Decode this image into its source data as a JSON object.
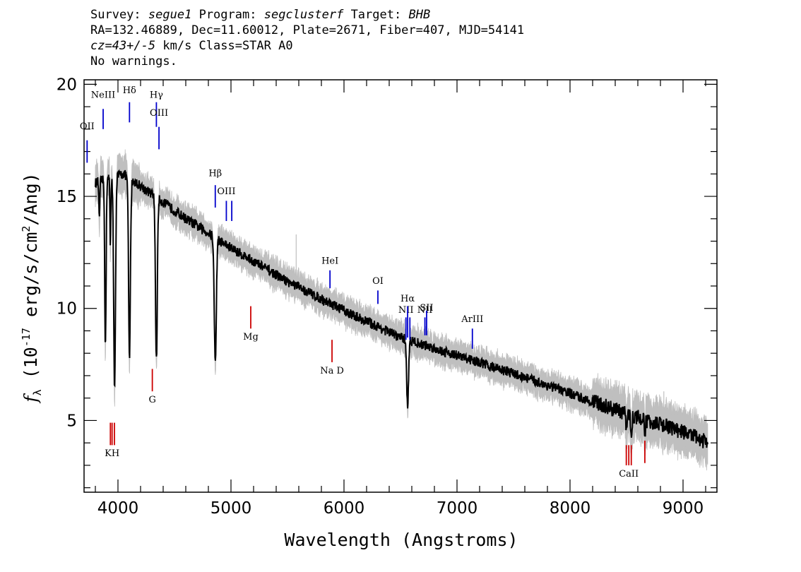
{
  "header": {
    "line1": {
      "survey_label": "Survey:",
      "survey": "segue1",
      "program_label": "Program:",
      "program": "segclusterf",
      "target_label": "Target:",
      "target": "BHB"
    },
    "line2": "RA=132.46889, Dec=11.60012, Plate=2671, Fiber=407, MJD=54141",
    "line3": {
      "redshift": "cz=43+/-5",
      "rest": " km/s Class=STAR A0"
    },
    "line4": "No warnings."
  },
  "chart_data": {
    "type": "line",
    "title": "",
    "xlabel": "Wavelength (Angstroms)",
    "ylabel_parts": {
      "symbol": "f",
      "sub": "λ",
      "pre": " (10",
      "sup": "-17",
      "mid": " erg/s/cm",
      "sup2": "2",
      "post": "/Ang)"
    },
    "xlim": [
      3700,
      9300
    ],
    "ylim": [
      1.8,
      20.2
    ],
    "x_ticks": [
      4000,
      5000,
      6000,
      7000,
      8000,
      9000
    ],
    "y_ticks": [
      5,
      10,
      15,
      20
    ],
    "x_tick_labels": [
      "4000",
      "5000",
      "6000",
      "7000",
      "8000",
      "9000"
    ],
    "y_tick_labels": [
      "5",
      "10",
      "15",
      "20"
    ],
    "colors": {
      "flux": "#000000",
      "error_band": "#bfbfbf",
      "emission": "#0000cc",
      "absorption": "#cc0000",
      "sky": "#000000"
    },
    "continuum": [
      [
        3800,
        15.6
      ],
      [
        4050,
        16.0
      ],
      [
        4300,
        15.1
      ],
      [
        4600,
        14.0
      ],
      [
        5000,
        12.7
      ],
      [
        5500,
        11.2
      ],
      [
        6000,
        9.9
      ],
      [
        6500,
        8.7
      ],
      [
        7000,
        7.9
      ],
      [
        7500,
        7.1
      ],
      [
        8000,
        6.2
      ],
      [
        8500,
        5.3
      ],
      [
        9000,
        4.5
      ],
      [
        9220,
        4.0
      ]
    ],
    "absorption_features": [
      {
        "center": 3835,
        "depth": 1.8,
        "width": 4
      },
      {
        "center": 3889,
        "depth": 7.5,
        "width": 6
      },
      {
        "center": 3933,
        "depth": 3.0,
        "width": 4
      },
      {
        "center": 3970,
        "depth": 9.5,
        "width": 8
      },
      {
        "center": 4102,
        "depth": 8.0,
        "width": 8
      },
      {
        "center": 4340,
        "depth": 7.3,
        "width": 8
      },
      {
        "center": 4861,
        "depth": 5.6,
        "width": 9
      },
      {
        "center": 6563,
        "depth": 3.0,
        "width": 8
      },
      {
        "center": 8498,
        "depth": 0.5,
        "width": 6
      },
      {
        "center": 8542,
        "depth": 0.8,
        "width": 6
      },
      {
        "center": 8662,
        "depth": 0.6,
        "width": 6
      }
    ],
    "sky_spikes": [
      {
        "x": 5577,
        "y": 13.3
      },
      {
        "x": 5890,
        "y": 10.2
      },
      {
        "x": 8400,
        "y": 6.8
      },
      {
        "x": 8830,
        "y": 6.3
      }
    ],
    "emission_lines": [
      {
        "label": "OII",
        "x": 3727,
        "y_top": 17.5,
        "y_bottom": 16.5,
        "label_y": 18.0
      },
      {
        "label": "NeIII",
        "x": 3869,
        "y_top": 18.9,
        "y_bottom": 18.0,
        "label_y": 19.4
      },
      {
        "label": "Hδ",
        "x": 4102,
        "y_top": 19.2,
        "y_bottom": 18.3,
        "label_y": 19.6
      },
      {
        "label": "Hγ",
        "x": 4340,
        "y_top": 19.2,
        "y_bottom": 18.1,
        "label_y": 19.4
      },
      {
        "label": "OIII",
        "x": 4363,
        "y_top": 18.1,
        "y_bottom": 17.1,
        "label_y": 18.6
      },
      {
        "label": "Hβ",
        "x": 4861,
        "y_top": 15.5,
        "y_bottom": 14.5,
        "label_y": 15.9
      },
      {
        "label": "OIII",
        "x": 4959,
        "y_top": 14.8,
        "y_bottom": 13.9,
        "label_y": 15.1
      },
      {
        "label": "",
        "x": 5007,
        "y_top": 14.8,
        "y_bottom": 13.9,
        "label_y": 15.1
      },
      {
        "label": "HeI",
        "x": 5876,
        "y_top": 11.7,
        "y_bottom": 10.9,
        "label_y": 12.0
      },
      {
        "label": "OI",
        "x": 6300,
        "y_top": 10.8,
        "y_bottom": 10.2,
        "label_y": 11.1
      },
      {
        "label": "NII",
        "x": 6548,
        "y_top": 9.6,
        "y_bottom": 8.6,
        "label_y": 9.8
      },
      {
        "label": "Hα",
        "x": 6563,
        "y_top": 10.1,
        "y_bottom": 8.7,
        "label_y": 10.3
      },
      {
        "label": "",
        "x": 6583,
        "y_top": 9.6,
        "y_bottom": 8.6,
        "label_y": 9.8
      },
      {
        "label": "NII",
        "x": 6716,
        "y_top": 9.6,
        "y_bottom": 8.8,
        "label_y": 9.8
      },
      {
        "label": "SII",
        "x": 6731,
        "y_top": 9.9,
        "y_bottom": 8.8,
        "label_y": 9.9
      },
      {
        "label": "ArIII",
        "x": 7136,
        "y_top": 9.1,
        "y_bottom": 8.2,
        "label_y": 9.4
      }
    ],
    "absorption_lines": [
      {
        "label": "KH",
        "x": 3948,
        "y_top": 4.9,
        "y_bottom": 3.9,
        "label_y": 3.4
      },
      {
        "label": "",
        "x": 3933,
        "y_top": 4.9,
        "y_bottom": 3.9,
        "label_y": 3.4
      },
      {
        "label": "",
        "x": 3969,
        "y_top": 4.9,
        "y_bottom": 3.9,
        "label_y": 3.4
      },
      {
        "label": "G",
        "x": 4304,
        "y_top": 7.3,
        "y_bottom": 6.3,
        "label_y": 5.8
      },
      {
        "label": "Mg",
        "x": 5175,
        "y_top": 10.1,
        "y_bottom": 9.1,
        "label_y": 8.6
      },
      {
        "label": "Na D",
        "x": 5894,
        "y_top": 8.6,
        "y_bottom": 7.6,
        "label_y": 7.1
      },
      {
        "label": "CaII",
        "x": 8520,
        "y_top": 3.9,
        "y_bottom": 3.0,
        "label_y": 2.5
      },
      {
        "label": "",
        "x": 8498,
        "y_top": 3.9,
        "y_bottom": 3.0,
        "label_y": 2.5
      },
      {
        "label": "",
        "x": 8542,
        "y_top": 3.9,
        "y_bottom": 3.0,
        "label_y": 2.5
      },
      {
        "label": "",
        "x": 8662,
        "y_top": 4.1,
        "y_bottom": 3.1,
        "label_y": 2.5
      }
    ]
  }
}
